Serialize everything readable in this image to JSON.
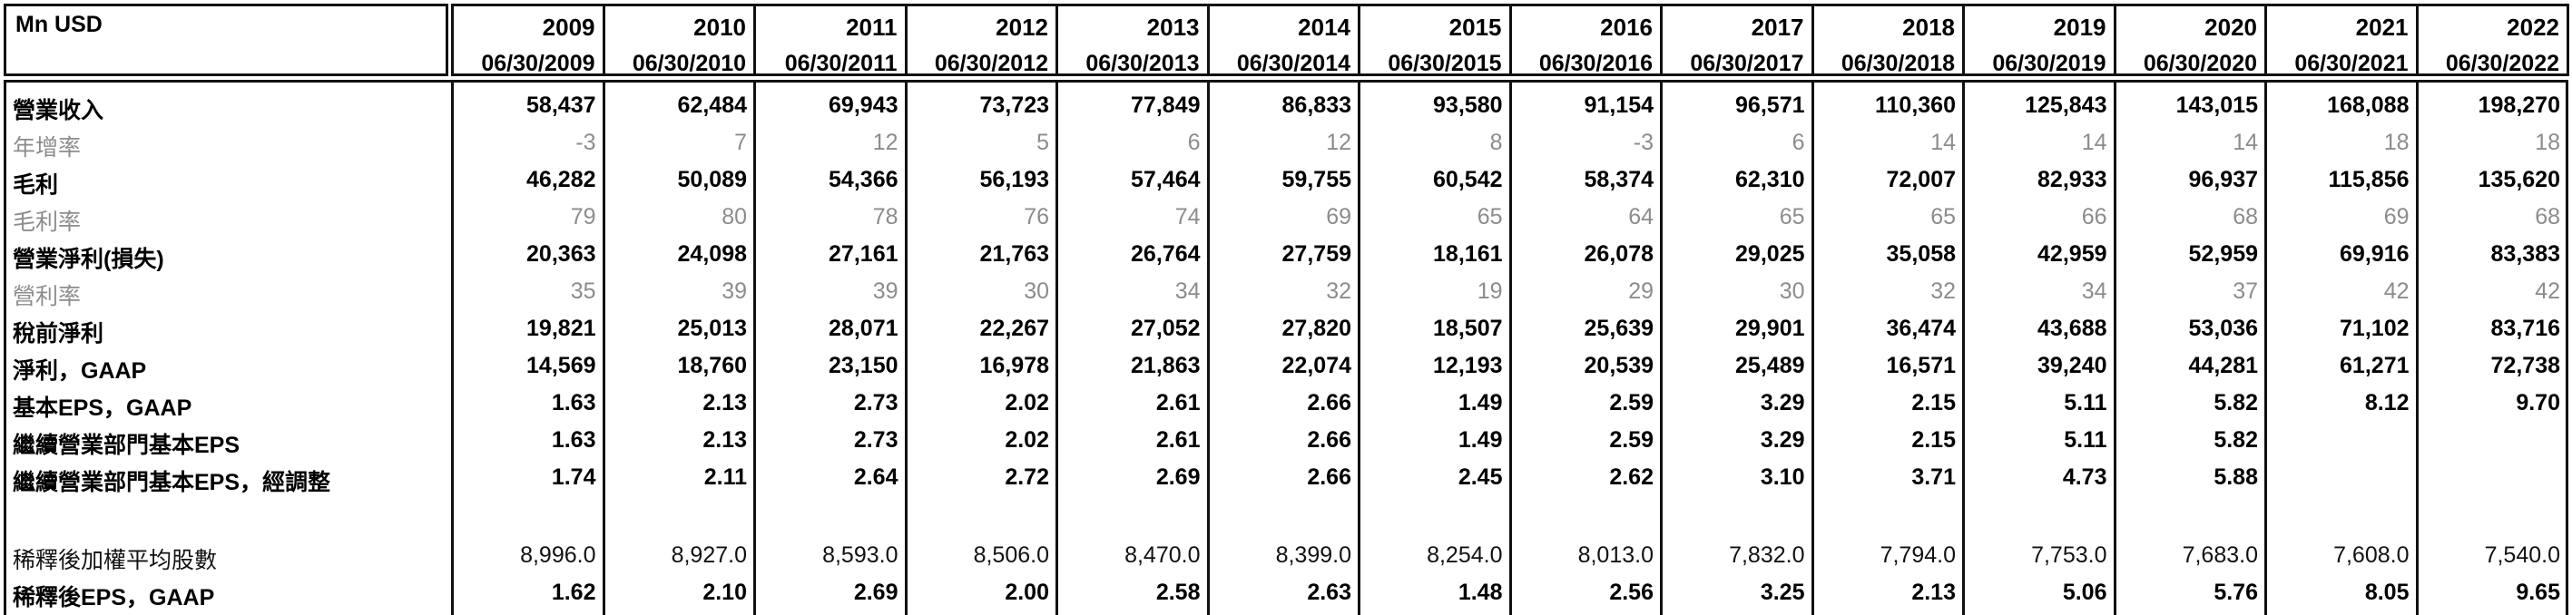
{
  "table": {
    "corner_label": "Mn USD",
    "columns": [
      {
        "year": "2009",
        "date": "06/30/2009"
      },
      {
        "year": "2010",
        "date": "06/30/2010"
      },
      {
        "year": "2011",
        "date": "06/30/2011"
      },
      {
        "year": "2012",
        "date": "06/30/2012"
      },
      {
        "year": "2013",
        "date": "06/30/2013"
      },
      {
        "year": "2014",
        "date": "06/30/2014"
      },
      {
        "year": "2015",
        "date": "06/30/2015"
      },
      {
        "year": "2016",
        "date": "06/30/2016"
      },
      {
        "year": "2017",
        "date": "06/30/2017"
      },
      {
        "year": "2018",
        "date": "06/30/2018"
      },
      {
        "year": "2019",
        "date": "06/30/2019"
      },
      {
        "year": "2020",
        "date": "06/30/2020"
      },
      {
        "year": "2021",
        "date": "06/30/2021"
      },
      {
        "year": "2022",
        "date": "06/30/2022"
      }
    ],
    "rows": [
      {
        "label": "營業收入",
        "style": "bold",
        "values": [
          "58,437",
          "62,484",
          "69,943",
          "73,723",
          "77,849",
          "86,833",
          "93,580",
          "91,154",
          "96,571",
          "110,360",
          "125,843",
          "143,015",
          "168,088",
          "198,270"
        ]
      },
      {
        "label": "年增率",
        "style": "muted",
        "values": [
          "-3",
          "7",
          "12",
          "5",
          "6",
          "12",
          "8",
          "-3",
          "6",
          "14",
          "14",
          "14",
          "18",
          "18"
        ]
      },
      {
        "label": "毛利",
        "style": "bold",
        "values": [
          "46,282",
          "50,089",
          "54,366",
          "56,193",
          "57,464",
          "59,755",
          "60,542",
          "58,374",
          "62,310",
          "72,007",
          "82,933",
          "96,937",
          "115,856",
          "135,620"
        ]
      },
      {
        "label": "毛利率",
        "style": "muted",
        "values": [
          "79",
          "80",
          "78",
          "76",
          "74",
          "69",
          "65",
          "64",
          "65",
          "65",
          "66",
          "68",
          "69",
          "68"
        ]
      },
      {
        "label": "營業淨利(損失)",
        "style": "bold",
        "values": [
          "20,363",
          "24,098",
          "27,161",
          "21,763",
          "26,764",
          "27,759",
          "18,161",
          "26,078",
          "29,025",
          "35,058",
          "42,959",
          "52,959",
          "69,916",
          "83,383"
        ]
      },
      {
        "label": "營利率",
        "style": "muted",
        "values": [
          "35",
          "39",
          "39",
          "30",
          "34",
          "32",
          "19",
          "29",
          "30",
          "32",
          "34",
          "37",
          "42",
          "42"
        ]
      },
      {
        "label": "稅前淨利",
        "style": "bold",
        "values": [
          "19,821",
          "25,013",
          "28,071",
          "22,267",
          "27,052",
          "27,820",
          "18,507",
          "25,639",
          "29,901",
          "36,474",
          "43,688",
          "53,036",
          "71,102",
          "83,716"
        ]
      },
      {
        "label": "淨利，GAAP",
        "style": "bold",
        "values": [
          "14,569",
          "18,760",
          "23,150",
          "16,978",
          "21,863",
          "22,074",
          "12,193",
          "20,539",
          "25,489",
          "16,571",
          "39,240",
          "44,281",
          "61,271",
          "72,738"
        ]
      },
      {
        "label": "基本EPS，GAAP",
        "style": "bold",
        "values": [
          "1.63",
          "2.13",
          "2.73",
          "2.02",
          "2.61",
          "2.66",
          "1.49",
          "2.59",
          "3.29",
          "2.15",
          "5.11",
          "5.82",
          "8.12",
          "9.70"
        ]
      },
      {
        "label": "繼續營業部門基本EPS",
        "style": "bold",
        "values": [
          "1.63",
          "2.13",
          "2.73",
          "2.02",
          "2.61",
          "2.66",
          "1.49",
          "2.59",
          "3.29",
          "2.15",
          "5.11",
          "5.82",
          "",
          ""
        ]
      },
      {
        "label": "繼續營業部門基本EPS，經調整",
        "style": "bold",
        "values": [
          "1.74",
          "2.11",
          "2.64",
          "2.72",
          "2.69",
          "2.66",
          "2.45",
          "2.62",
          "3.10",
          "3.71",
          "4.73",
          "5.88",
          "",
          ""
        ]
      },
      {
        "label": "稀釋後加權平均股數",
        "style": "plain",
        "values": [
          "8,996.0",
          "8,927.0",
          "8,593.0",
          "8,506.0",
          "8,470.0",
          "8,399.0",
          "8,254.0",
          "8,013.0",
          "7,832.0",
          "7,794.0",
          "7,753.0",
          "7,683.0",
          "7,608.0",
          "7,540.0"
        ]
      },
      {
        "label": "稀釋後EPS，GAAP",
        "style": "bold",
        "values": [
          "1.62",
          "2.10",
          "2.69",
          "2.00",
          "2.58",
          "2.63",
          "1.48",
          "2.56",
          "3.25",
          "2.13",
          "5.06",
          "5.76",
          "8.05",
          "9.65"
        ]
      }
    ]
  }
}
